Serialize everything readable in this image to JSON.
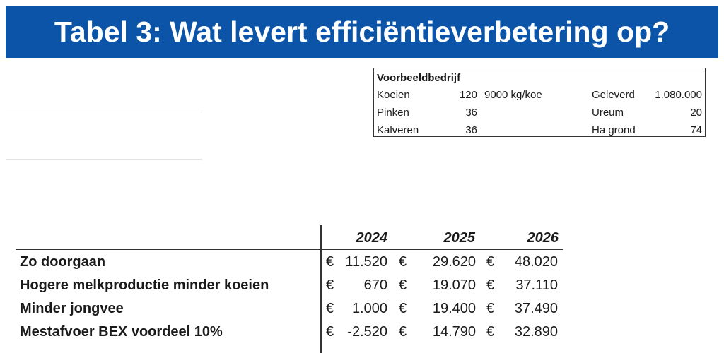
{
  "title": "Tabel 3: Wat levert efficiëntieverbetering op?",
  "voorbeeld": {
    "header": "Voorbeeldbedrijf",
    "rows": [
      {
        "label": "Koeien",
        "value": "120",
        "unit": "9000 kg/koe",
        "label2": "Geleverd",
        "value2": "1.080.000"
      },
      {
        "label": "Pinken",
        "value": "36",
        "unit": "",
        "label2": "Ureum",
        "value2": "20"
      },
      {
        "label": "Kalveren",
        "value": "36",
        "unit": "",
        "label2": "Ha grond",
        "value2": "74"
      }
    ]
  },
  "table": {
    "years": [
      "2024",
      "2025",
      "2026"
    ],
    "currency": "€",
    "rows": [
      {
        "label": "Zo doorgaan",
        "values": [
          "11.520",
          "29.620",
          "48.020"
        ]
      },
      {
        "label": "Hogere melkproductie minder koeien",
        "values": [
          "670",
          "19.070",
          "37.110"
        ]
      },
      {
        "label": "Minder jongvee",
        "values": [
          "1.000",
          "19.400",
          "37.490"
        ]
      },
      {
        "label": "Mestafvoer BEX voordeel 10%",
        "values": [
          "-2.520",
          "14.790",
          "32.890"
        ]
      }
    ]
  },
  "colors": {
    "title_bg": "#0b54a7",
    "title_text": "#ffffff"
  }
}
